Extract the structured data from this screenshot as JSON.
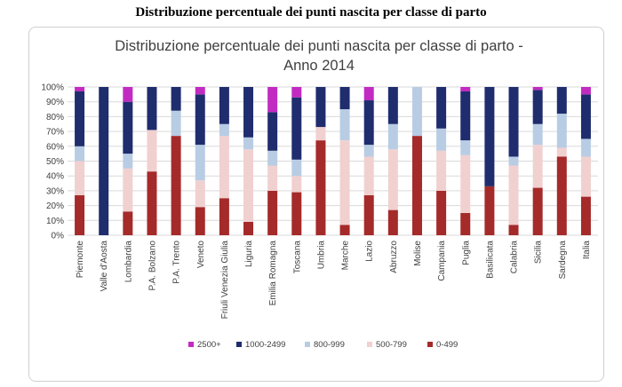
{
  "heading": "Distribuzione percentuale dei punti nascita per classe di parto",
  "chart_data": {
    "type": "bar",
    "stacked": true,
    "title_lines": [
      "Distribuzione percentuale dei punti nascita per classe di parto -",
      "Anno 2014"
    ],
    "categories": [
      "Piemonte",
      "Valle d'Aosta",
      "Lombardia",
      "P.A. Bolzano",
      "P.A. Trento",
      "Veneto",
      "Friuli Venezia Giulia",
      "Liguria",
      "Emilia Romagna",
      "Toscana",
      "Umbria",
      "Marche",
      "Lazio",
      "Abruzzo",
      "Molise",
      "Campania",
      "Puglia",
      "Basilicata",
      "Calabria",
      "Sicilia",
      "Sardegna",
      "Italia"
    ],
    "series": [
      {
        "name": "0-499",
        "color": "#a52a2a",
        "values": [
          27,
          0,
          16,
          43,
          67,
          19,
          25,
          9,
          30,
          29,
          64,
          7,
          27,
          17,
          67,
          30,
          15,
          33,
          7,
          32,
          53,
          26
        ]
      },
      {
        "name": "500-799",
        "color": "#f1d0d0",
        "values": [
          23,
          0,
          29,
          28,
          0,
          18,
          42,
          49,
          17,
          11,
          9,
          57,
          26,
          41,
          0,
          27,
          39,
          0,
          40,
          29,
          6,
          27
        ]
      },
      {
        "name": "800-999",
        "color": "#b8cde4",
        "values": [
          10,
          0,
          10,
          0,
          17,
          24,
          8,
          8,
          10,
          11,
          0,
          21,
          8,
          17,
          33,
          15,
          10,
          0,
          6,
          14,
          23,
          12
        ]
      },
      {
        "name": "1000-2499",
        "color": "#1f2d6e",
        "values": [
          37,
          100,
          35,
          29,
          16,
          34,
          25,
          34,
          26,
          42,
          27,
          15,
          30,
          25,
          0,
          28,
          33,
          67,
          47,
          23,
          18,
          30
        ]
      },
      {
        "name": "2500+",
        "color": "#c22bc2",
        "values": [
          3,
          0,
          10,
          0,
          0,
          5,
          0,
          0,
          17,
          7,
          0,
          0,
          9,
          0,
          0,
          0,
          3,
          0,
          0,
          2,
          0,
          5
        ]
      }
    ],
    "yticks": [
      "0%",
      "10%",
      "20%",
      "30%",
      "40%",
      "50%",
      "60%",
      "70%",
      "80%",
      "90%",
      "100%"
    ],
    "ylim": [
      0,
      100
    ],
    "legend_order": [
      "2500+",
      "1000-2499",
      "800-999",
      "500-799",
      "0-499"
    ],
    "legend_position": "bottom",
    "grid": true
  }
}
